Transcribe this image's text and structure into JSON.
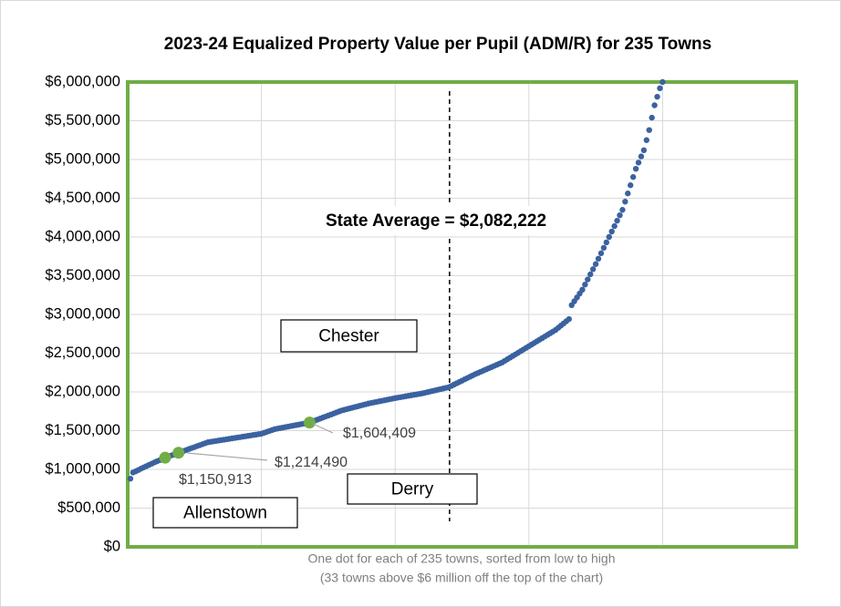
{
  "chart_data": {
    "type": "scatter",
    "title": "2023-24 Equalized Property Value per Pupil (ADM/R) for 235 Towns",
    "x_label": [
      "One dot for each of 235 towns, sorted from low to high",
      "(33 towns above $6 million off the top of the chart)"
    ],
    "xlim": [
      0,
      250
    ],
    "xticks": [
      0,
      50,
      100,
      150,
      200,
      250
    ],
    "ylim": [
      0,
      6000000
    ],
    "yticks": [
      {
        "value": 0,
        "label": "$0"
      },
      {
        "value": 500000,
        "label": "$500,000"
      },
      {
        "value": 1000000,
        "label": "$1,000,000"
      },
      {
        "value": 1500000,
        "label": "$1,500,000"
      },
      {
        "value": 2000000,
        "label": "$2,000,000"
      },
      {
        "value": 2500000,
        "label": "$2,500,000"
      },
      {
        "value": 3000000,
        "label": "$3,000,000"
      },
      {
        "value": 3500000,
        "label": "$3,500,000"
      },
      {
        "value": 4000000,
        "label": "$4,000,000"
      },
      {
        "value": 4500000,
        "label": "$4,500,000"
      },
      {
        "value": 5000000,
        "label": "$5,000,000"
      },
      {
        "value": 5500000,
        "label": "$5,500,000"
      },
      {
        "value": 6000000,
        "label": "$6,000,000"
      }
    ],
    "grid": true,
    "series": [
      {
        "color": "#3b62a0",
        "x": [
          1,
          2,
          3,
          4,
          5,
          6,
          7,
          8,
          9,
          10,
          11,
          12,
          13,
          14,
          15,
          16,
          17,
          18,
          19,
          20,
          21,
          22,
          23,
          24,
          25,
          26,
          27,
          28,
          29,
          30,
          31,
          32,
          33,
          34,
          35,
          36,
          37,
          38,
          39,
          40,
          41,
          42,
          43,
          44,
          45,
          46,
          47,
          48,
          49,
          50,
          51,
          52,
          53,
          54,
          55,
          56,
          57,
          58,
          59,
          60,
          61,
          62,
          63,
          64,
          65,
          66,
          67,
          68,
          69,
          70,
          71,
          72,
          73,
          74,
          75,
          76,
          77,
          78,
          79,
          80,
          81,
          82,
          83,
          84,
          85,
          86,
          87,
          88,
          89,
          90,
          91,
          92,
          93,
          94,
          95,
          96,
          97,
          98,
          99,
          100,
          101,
          102,
          103,
          104,
          105,
          106,
          107,
          108,
          109,
          110,
          111,
          112,
          113,
          114,
          115,
          116,
          117,
          118,
          119,
          120,
          121,
          122,
          123,
          124,
          125,
          126,
          127,
          128,
          129,
          130,
          131,
          132,
          133,
          134,
          135,
          136,
          137,
          138,
          139,
          140,
          141,
          142,
          143,
          144,
          145,
          146,
          147,
          148,
          149,
          150,
          151,
          152,
          153,
          154,
          155,
          156,
          157,
          158,
          159,
          160,
          161,
          162,
          163,
          164,
          165,
          166,
          167,
          168,
          169,
          170,
          171,
          172,
          173,
          174,
          175,
          176,
          177,
          178,
          179,
          180,
          181,
          182,
          183,
          184,
          185,
          186,
          187,
          188,
          189,
          190,
          191,
          192,
          193,
          194,
          195,
          196,
          197,
          198,
          199,
          200
        ],
        "values": [
          880000,
          960000,
          975000,
          992000,
          1010000,
          1026000,
          1042000,
          1058000,
          1074000,
          1090000,
          1105000,
          1120000,
          1135000,
          1150000,
          1163000,
          1176000,
          1188000,
          1201000,
          1214000,
          1226000,
          1239000,
          1251000,
          1264000,
          1276000,
          1288000,
          1301000,
          1313000,
          1326000,
          1338000,
          1350000,
          1356000,
          1361000,
          1367000,
          1372000,
          1378000,
          1383000,
          1389000,
          1394000,
          1400000,
          1405000,
          1411000,
          1416000,
          1422000,
          1427000,
          1433000,
          1438000,
          1444000,
          1449000,
          1455000,
          1460000,
          1472000,
          1484000,
          1496000,
          1508000,
          1520000,
          1526000,
          1533000,
          1539000,
          1546000,
          1552000,
          1559000,
          1565000,
          1572000,
          1578000,
          1585000,
          1591000,
          1598000,
          1604000,
          1617000,
          1630000,
          1643000,
          1656000,
          1669000,
          1682000,
          1695000,
          1708000,
          1721000,
          1734000,
          1747000,
          1760000,
          1769000,
          1778000,
          1787000,
          1796000,
          1805000,
          1814000,
          1823000,
          1832000,
          1841000,
          1850000,
          1857000,
          1864000,
          1871000,
          1878000,
          1885000,
          1892000,
          1899000,
          1906000,
          1913000,
          1920000,
          1926000,
          1932000,
          1938000,
          1944000,
          1950000,
          1956000,
          1962000,
          1968000,
          1974000,
          1980000,
          1988000,
          1996000,
          2004000,
          2012000,
          2020000,
          2028000,
          2036000,
          2044000,
          2052000,
          2060000,
          2077000,
          2094000,
          2111000,
          2128000,
          2145000,
          2162000,
          2179000,
          2196000,
          2213000,
          2230000,
          2245000,
          2260000,
          2275000,
          2290000,
          2305000,
          2320000,
          2335000,
          2350000,
          2365000,
          2380000,
          2401000,
          2422000,
          2443000,
          2464000,
          2485000,
          2506000,
          2527000,
          2548000,
          2569000,
          2590000,
          2611000,
          2632000,
          2653000,
          2674000,
          2695000,
          2716000,
          2737000,
          2758000,
          2779000,
          2800000,
          2828000,
          2856000,
          2884000,
          2912000,
          2940000,
          3120000,
          3170000,
          3220000,
          3270000,
          3320000,
          3386000,
          3452000,
          3518000,
          3584000,
          3650000,
          3720000,
          3790000,
          3860000,
          3930000,
          4000000,
          4070000,
          4140000,
          4210000,
          4280000,
          4350000,
          4456000,
          4562000,
          4668000,
          4774000,
          4880000,
          4960000,
          5040000,
          5120000,
          5250000,
          5380000,
          5540000,
          5700000,
          5810000,
          5920000,
          6000000
        ]
      },
      {
        "color": "#70ad47",
        "highlight": true,
        "x": [
          14,
          19,
          68
        ],
        "values": [
          1150913,
          1214490,
          1604409
        ],
        "value_labels": [
          "$1,150,913",
          "$1,214,490",
          "$1,604,409"
        ]
      }
    ],
    "reference_line": {
      "x": 120,
      "label": "State Average = $2,082,222"
    },
    "annotations": [
      "Allenstown",
      "Chester",
      "Derry"
    ]
  }
}
